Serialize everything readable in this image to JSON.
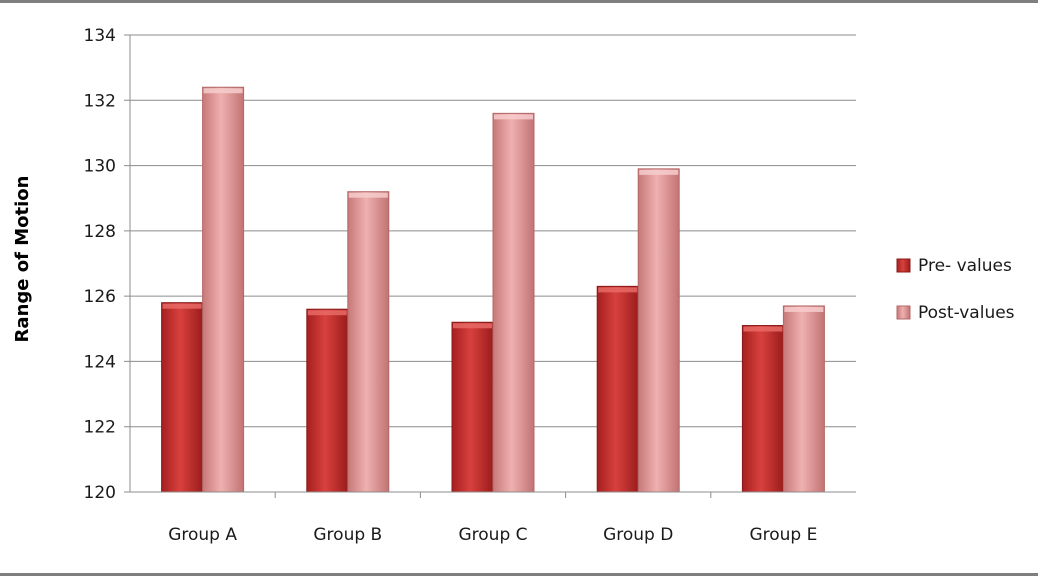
{
  "chart_data": {
    "type": "bar",
    "title": "",
    "xlabel": "",
    "ylabel": "Range of Motion",
    "ylim": [
      120,
      134
    ],
    "yticks": [
      120,
      122,
      124,
      126,
      128,
      130,
      132,
      134
    ],
    "categories": [
      "Group A",
      "Group B",
      "Group C",
      "Group D",
      "Group E"
    ],
    "series": [
      {
        "name": "Pre- values",
        "values": [
          125.8,
          125.6,
          125.2,
          126.3,
          125.1
        ],
        "color": "#c0302e"
      },
      {
        "name": "Post-values",
        "values": [
          132.4,
          129.2,
          131.6,
          129.9,
          125.7
        ],
        "color": "#d98a8a"
      }
    ],
    "grid": true,
    "legend_position": "right"
  }
}
